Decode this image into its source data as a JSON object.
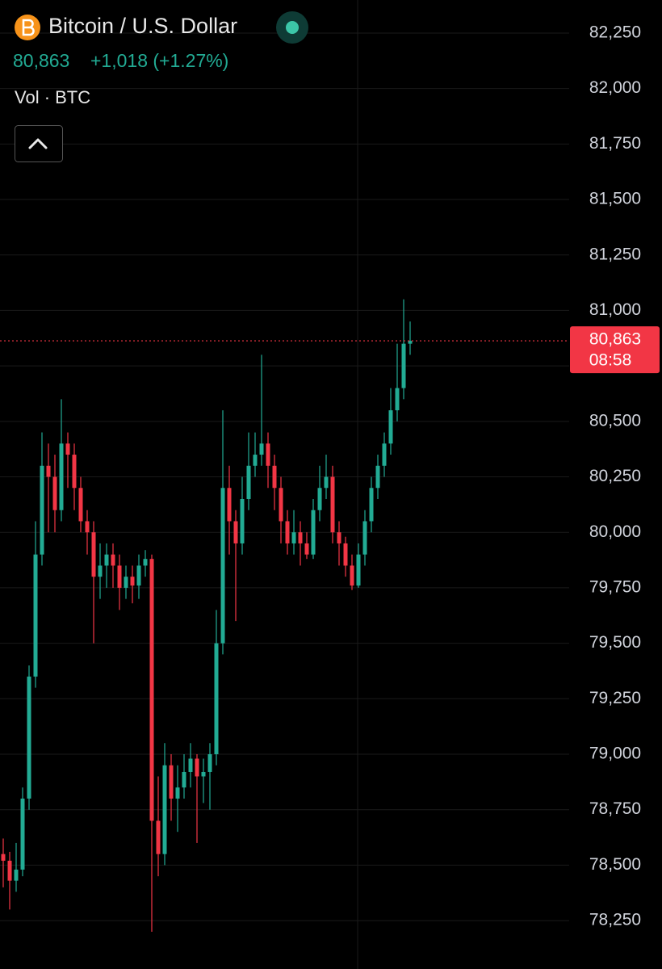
{
  "chart_data": {
    "type": "candlestick",
    "title": "Bitcoin / U.S. Dollar",
    "header_price": "80,863",
    "header_change": "+1,018 (+1.27%)",
    "volume_label": "Vol · BTC",
    "countdown": "08:58",
    "last_price": {
      "value": 80863,
      "label": "80,863"
    },
    "up_color": "#22ab94",
    "down_color": "#f23645",
    "grid": true,
    "ylim": [
      78032,
      82399
    ],
    "yticks": [
      {
        "value": 78250,
        "label": "78,250"
      },
      {
        "value": 78500,
        "label": "78,500"
      },
      {
        "value": 78750,
        "label": "78,750"
      },
      {
        "value": 79000,
        "label": "79,000"
      },
      {
        "value": 79250,
        "label": "79,250"
      },
      {
        "value": 79500,
        "label": "79,500"
      },
      {
        "value": 79750,
        "label": "79,750"
      },
      {
        "value": 80000,
        "label": "80,000"
      },
      {
        "value": 80250,
        "label": "80,250"
      },
      {
        "value": 80500,
        "label": "80,500"
      },
      {
        "value": 80750,
        "label": "80,750"
      },
      {
        "value": 81000,
        "label": "81,000"
      },
      {
        "value": 81250,
        "label": "81,250"
      },
      {
        "value": 81500,
        "label": "81,500"
      },
      {
        "value": 81750,
        "label": "81,750"
      },
      {
        "value": 82000,
        "label": "82,000"
      },
      {
        "value": 82250,
        "label": "82,250"
      }
    ],
    "open": [
      78550,
      78520,
      78430,
      78480,
      78800,
      79350,
      79900,
      80300,
      80250,
      80100,
      80400,
      80350,
      80200,
      80050,
      80000,
      79800,
      79850,
      79900,
      79850,
      79750,
      79800,
      79760,
      79850,
      79880,
      78700,
      78550,
      78950,
      78800,
      78850,
      78920,
      78980,
      78900,
      78920,
      79000,
      79500,
      80200,
      80050,
      79950,
      80150,
      80300,
      80350,
      80400,
      80300,
      80200,
      80050,
      79950,
      80000,
      79950,
      79900,
      80100,
      80200,
      80250,
      80000,
      79950,
      79850,
      79760,
      79900,
      80050,
      80200,
      80300,
      80400,
      80550,
      80650,
      80850
    ],
    "high": [
      78620,
      78560,
      78600,
      78850,
      79400,
      80050,
      80450,
      80400,
      80350,
      80600,
      80450,
      80400,
      80250,
      80100,
      80050,
      79950,
      79950,
      79950,
      79900,
      79850,
      79850,
      79900,
      79920,
      79900,
      78900,
      79050,
      79000,
      78950,
      79000,
      79050,
      79000,
      78980,
      79050,
      79650,
      80550,
      80300,
      80100,
      80250,
      80450,
      80450,
      80800,
      80450,
      80350,
      80250,
      80100,
      80100,
      80050,
      80000,
      80150,
      80300,
      80350,
      80300,
      80050,
      79980,
      79900,
      79950,
      80100,
      80250,
      80350,
      80450,
      80650,
      80850,
      81050,
      80950
    ],
    "low": [
      78400,
      78300,
      78380,
      78450,
      78750,
      79300,
      79850,
      80000,
      80000,
      80050,
      80200,
      80100,
      80000,
      79900,
      79500,
      79700,
      79750,
      79750,
      79650,
      79700,
      79680,
      79700,
      79800,
      78200,
      78450,
      78500,
      78700,
      78650,
      78800,
      78850,
      78600,
      78780,
      78750,
      78950,
      79450,
      79900,
      79600,
      79900,
      80100,
      80250,
      80300,
      80200,
      80100,
      79950,
      79900,
      79900,
      79850,
      79880,
      79880,
      80050,
      80150,
      79950,
      79850,
      79800,
      79740,
      79750,
      79850,
      80000,
      80150,
      80250,
      80350,
      80500,
      80600,
      80800
    ],
    "close": [
      78520,
      78430,
      78480,
      78800,
      79350,
      79900,
      80300,
      80250,
      80100,
      80400,
      80350,
      80200,
      80050,
      80000,
      79800,
      79850,
      79900,
      79850,
      79750,
      79800,
      79760,
      79850,
      79880,
      78700,
      78550,
      78950,
      78800,
      78850,
      78920,
      78980,
      78900,
      78920,
      79000,
      79500,
      80200,
      80050,
      79950,
      80150,
      80300,
      80350,
      80400,
      80300,
      80200,
      80050,
      79950,
      80000,
      79950,
      79900,
      80100,
      80200,
      80250,
      80000,
      79950,
      79850,
      79760,
      79900,
      80050,
      80200,
      80300,
      80400,
      80550,
      80650,
      80850,
      80863
    ]
  }
}
